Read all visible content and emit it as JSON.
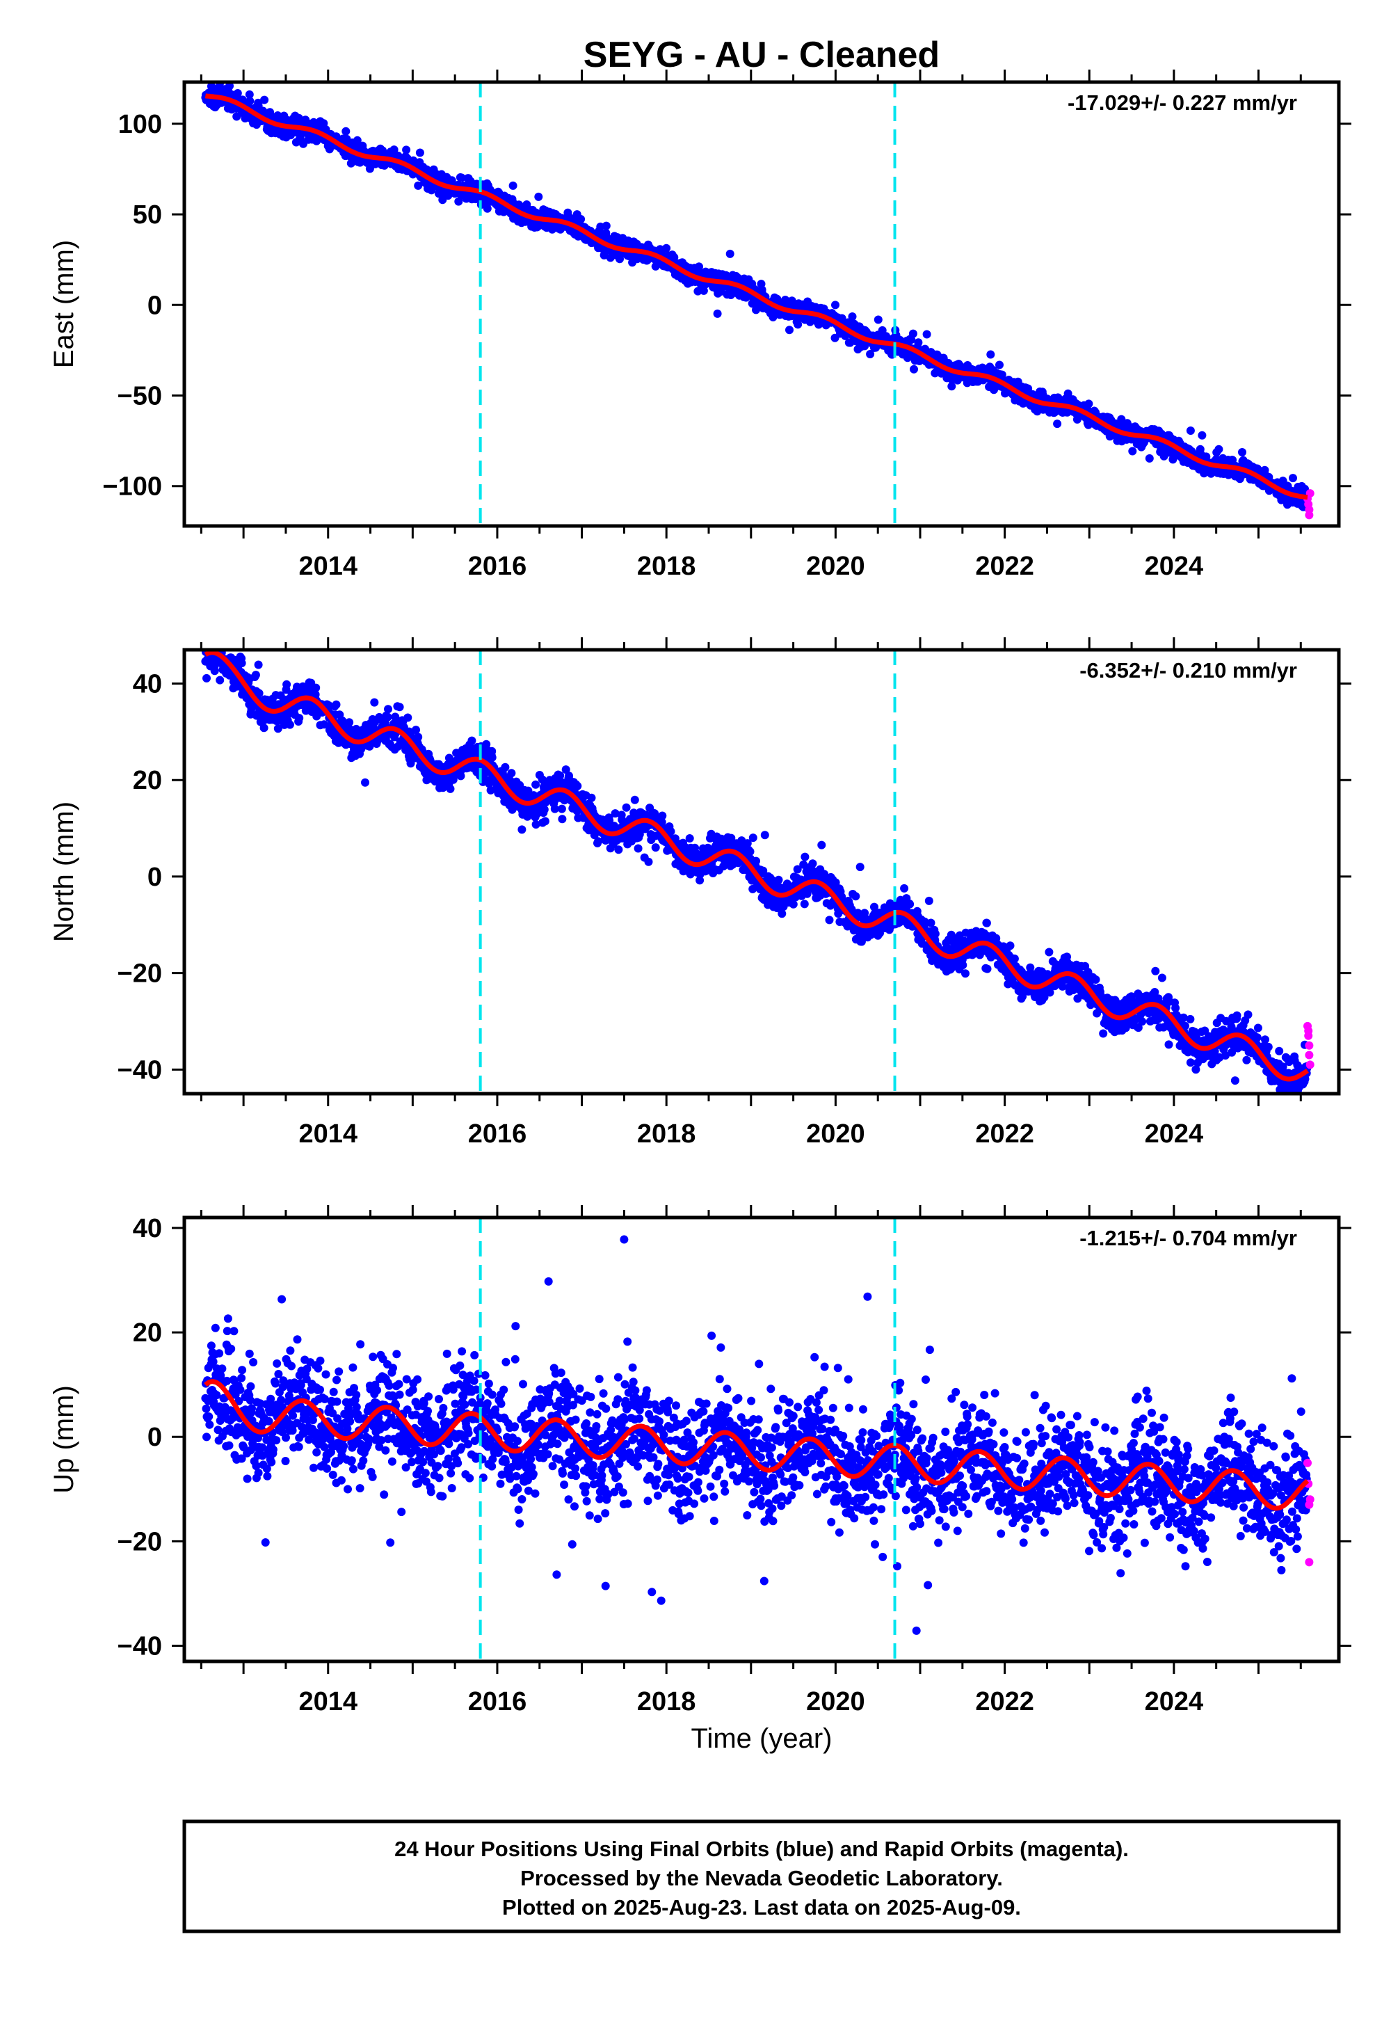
{
  "figure": {
    "title": "SEYG  - AU - Cleaned",
    "xlabel": "Time (year)",
    "footer": [
      "24 Hour Positions Using Final Orbits (blue) and Rapid Orbits (magenta).",
      "Processed by the Nevada Geodetic Laboratory.",
      "Plotted on 2025-Aug-23. Last data on 2025-Aug-09."
    ]
  },
  "colors": {
    "final": "#0000ff",
    "rapid": "#ff00ff",
    "model": "#ff0000",
    "events": "#00e5ee",
    "frame": "#000000"
  },
  "chart_data": [
    {
      "type": "scatter",
      "id": "east",
      "ylabel": "East (mm)",
      "rate": "-17.029+/- 0.227 mm/yr",
      "xlim": [
        2012.3,
        2025.95
      ],
      "ylim": [
        -122,
        123
      ],
      "xticks": [
        2014,
        2016,
        2018,
        2020,
        2022,
        2024
      ],
      "yticks": [
        100,
        50,
        0,
        -50,
        -100
      ],
      "event_lines": [
        2015.8,
        2020.7
      ],
      "model": {
        "start": [
          2012.55,
          116
        ],
        "slope": -17.029,
        "annual_amp": 2.0,
        "phase": 0.6,
        "lead_bump": 0
      },
      "scatter": {
        "sd": 2.6,
        "outlier_sd": 7
      },
      "rapid": [
        [
          2025.58,
          -107
        ],
        [
          2025.59,
          -110
        ],
        [
          2025.6,
          -113
        ],
        [
          2025.6,
          -116
        ],
        [
          2025.61,
          -104
        ]
      ]
    },
    {
      "type": "scatter",
      "id": "north",
      "ylabel": "North (mm)",
      "rate": "-6.352+/- 0.210 mm/yr",
      "xlim": [
        2012.3,
        2025.95
      ],
      "ylim": [
        -45,
        47
      ],
      "xticks": [
        2014,
        2016,
        2018,
        2020,
        2022,
        2024
      ],
      "yticks": [
        40,
        20,
        0,
        -20,
        -40
      ],
      "event_lines": [
        2015.8,
        2020.7
      ],
      "model": {
        "start": [
          2012.55,
          42
        ],
        "slope": -6.352,
        "annual_amp": 2.8,
        "phase": 0.55,
        "lead_bump": 4
      },
      "scatter": {
        "sd": 1.7,
        "outlier_sd": 4
      },
      "rapid": [
        [
          2025.58,
          -31
        ],
        [
          2025.59,
          -33
        ],
        [
          2025.6,
          -35
        ],
        [
          2025.6,
          -37
        ],
        [
          2025.61,
          -39
        ],
        [
          2025.59,
          -32
        ]
      ]
    },
    {
      "type": "scatter",
      "id": "up",
      "ylabel": "Up (mm)",
      "rate": "-1.215+/- 0.704 mm/yr",
      "xlim": [
        2012.3,
        2025.95
      ],
      "ylim": [
        -43,
        42
      ],
      "xticks": [
        2014,
        2016,
        2018,
        2020,
        2022,
        2024
      ],
      "yticks": [
        40,
        20,
        0,
        -20,
        -40
      ],
      "event_lines": [
        2015.8,
        2020.7
      ],
      "model": {
        "start": [
          2012.55,
          5
        ],
        "slope": -1.215,
        "annual_amp": 3.3,
        "phase": 0.45,
        "lead_bump": 3
      },
      "scatter": {
        "sd": 5.2,
        "outlier_sd": 14
      },
      "rapid": [
        [
          2025.58,
          -5
        ],
        [
          2025.59,
          -9
        ],
        [
          2025.6,
          -13
        ],
        [
          2025.6,
          -24
        ],
        [
          2025.61,
          -12
        ]
      ]
    }
  ]
}
